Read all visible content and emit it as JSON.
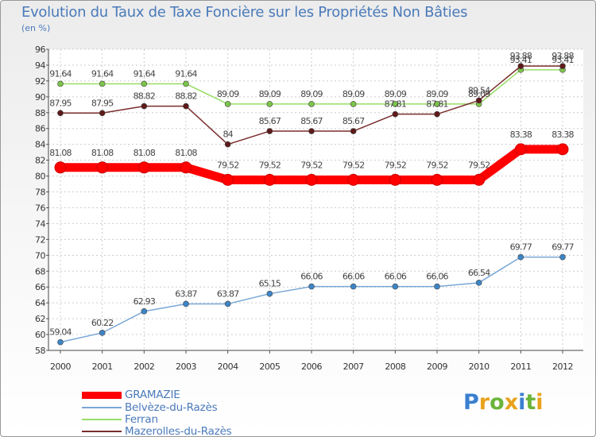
{
  "title": "Evolution du Taux de Taxe Foncière sur les Propriétés Non Bâties",
  "unit": "(en %)",
  "logo": {
    "letters": [
      "P",
      "r",
      "o",
      "x",
      "i",
      "t",
      "i"
    ],
    "colors": [
      "#3a7fd0",
      "#e8a21b",
      "#6bb43a",
      "#e8a21b",
      "#3a7fd0",
      "#6bb43a",
      "#e8a21b"
    ]
  },
  "chart_data": {
    "type": "line",
    "title": "Evolution du Taux de Taxe Foncière sur les Propriétés Non Bâties",
    "ylabel": "(en %)",
    "xlabel": "",
    "ylim": [
      58,
      96
    ],
    "yticks": [
      58,
      60,
      62,
      64,
      66,
      68,
      70,
      72,
      74,
      76,
      78,
      80,
      82,
      84,
      86,
      88,
      90,
      92,
      94,
      96
    ],
    "categories": [
      "2000",
      "2001",
      "2002",
      "2003",
      "2004",
      "2005",
      "2006",
      "2007",
      "2008",
      "2009",
      "2010",
      "2011",
      "2012"
    ],
    "grid": true,
    "series": [
      {
        "name": "GRAMAZIE",
        "color": "#ff0000",
        "width": 11,
        "marker": 7,
        "values": [
          81.08,
          81.08,
          81.08,
          81.08,
          79.52,
          79.52,
          79.52,
          79.52,
          79.52,
          79.52,
          79.52,
          83.38,
          83.38
        ],
        "labels": [
          "81.08",
          "81.08",
          "81.08",
          "81.08",
          "79.52",
          "79.52",
          "79.52",
          "79.52",
          "79.52",
          "79.52",
          "79.52",
          "83.38",
          "83.38"
        ]
      },
      {
        "name": "Belvèze-du-Razès",
        "color": "#7aa7d6",
        "marker_color": "#3d85c6",
        "width": 1.5,
        "marker": 3.5,
        "values": [
          59.04,
          60.22,
          62.93,
          63.87,
          63.87,
          65.15,
          66.06,
          66.06,
          66.06,
          66.06,
          66.54,
          69.77,
          69.77
        ],
        "labels": [
          "59.04",
          "60.22",
          "62.93",
          "63.87",
          "63.87",
          "65.15",
          "66.06",
          "66.06",
          "66.06",
          "66.06",
          "66.54",
          "69.77",
          "69.77"
        ]
      },
      {
        "name": "Ferran",
        "color": "#99dd66",
        "marker_color": "#7cc44a",
        "width": 1.5,
        "marker": 3.5,
        "values": [
          91.64,
          91.64,
          91.64,
          91.64,
          89.09,
          89.09,
          89.09,
          89.09,
          89.09,
          89.09,
          89.09,
          93.41,
          93.41
        ],
        "labels": [
          "91.64",
          "91.64",
          "91.64",
          "91.64",
          "89.09",
          "89.09",
          "89.09",
          "89.09",
          "89.09",
          "89.09",
          "89.09",
          "93.41",
          "93.41"
        ]
      },
      {
        "name": "Mazerolles-du-Razès",
        "color": "#7b2d2d",
        "marker_color": "#5e1a1a",
        "width": 1.5,
        "marker": 3.5,
        "values": [
          87.95,
          87.95,
          88.82,
          88.82,
          84,
          85.67,
          85.67,
          85.67,
          87.81,
          87.81,
          89.54,
          93.88,
          93.88
        ],
        "labels": [
          "87.95",
          "87.95",
          "88.82",
          "88.82",
          "84",
          "85.67",
          "85.67",
          "85.67",
          "87.81",
          "87.81",
          "89.54",
          "93.88",
          "93.88"
        ]
      }
    ]
  }
}
